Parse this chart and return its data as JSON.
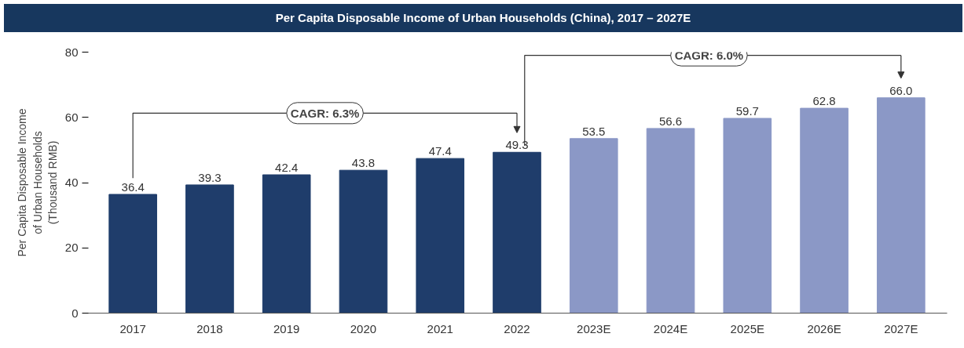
{
  "chart_data": {
    "type": "bar",
    "title": "Per Capita Disposable Income of Urban Households (China), 2017 – 2027E",
    "ylabel": "Per Capita Disposable Income\nof Urban Households\n(Thousand RMB)",
    "categories": [
      "2017",
      "2018",
      "2019",
      "2020",
      "2021",
      "2022",
      "2023E",
      "2024E",
      "2025E",
      "2026E",
      "2027E"
    ],
    "values": [
      36.4,
      39.3,
      42.4,
      43.8,
      47.4,
      49.3,
      53.5,
      56.6,
      59.7,
      62.8,
      66.0
    ],
    "value_labels": [
      "36.4",
      "39.3",
      "42.4",
      "43.8",
      "47.4",
      "49.3",
      "53.5",
      "56.6",
      "59.7",
      "62.8",
      "66.0"
    ],
    "colors": [
      "#1f3d6b",
      "#1f3d6b",
      "#1f3d6b",
      "#1f3d6b",
      "#1f3d6b",
      "#1f3d6b",
      "#8b98c6",
      "#8b98c6",
      "#8b98c6",
      "#8b98c6",
      "#8b98c6"
    ],
    "ylim": [
      0,
      80
    ],
    "yticks": [
      0,
      20,
      40,
      60,
      80
    ],
    "grid": false,
    "annotations": [
      "CAGR: 6.3%",
      "CAGR: 6.0%"
    ]
  }
}
